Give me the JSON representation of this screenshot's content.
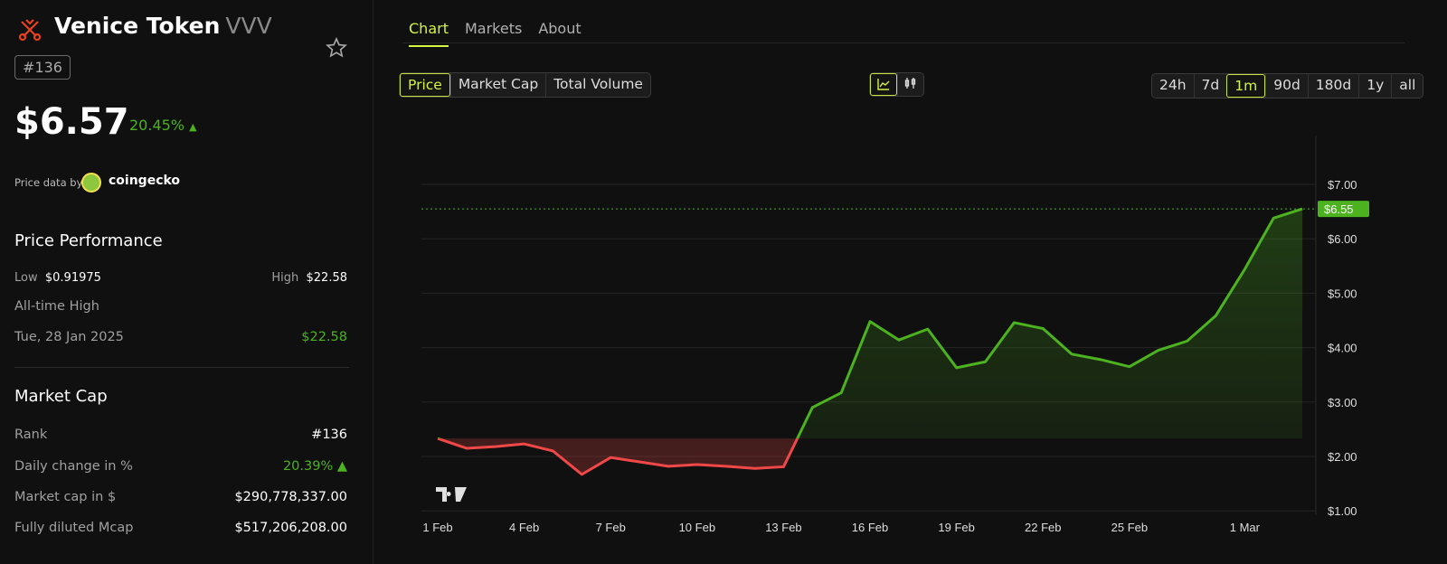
{
  "token": {
    "name": "Venice Token",
    "symbol": "VVV",
    "rank_badge": "#136",
    "price": "$6.57",
    "change_24h": "20.45%",
    "change_arrow": "▲",
    "price_data_by": "Price data by",
    "provider": "coingecko"
  },
  "performance": {
    "title": "Price Performance",
    "low_label": "Low",
    "low_value": "$0.91975",
    "high_label": "High",
    "high_value": "$22.58",
    "ath_label": "All-time High",
    "ath_date": "Tue, 28 Jan 2025",
    "ath_value": "$22.58"
  },
  "market_cap": {
    "title": "Market Cap",
    "rows": [
      {
        "label": "Rank",
        "value": "#136"
      },
      {
        "label": "Daily change in %",
        "value": "20.39% ▲"
      },
      {
        "label": "Market cap in $",
        "value": "$290,778,337.00"
      },
      {
        "label": "Fully diluted Mcap",
        "value": "$517,206,208.00"
      }
    ]
  },
  "tabs": [
    "Chart",
    "Markets",
    "About"
  ],
  "metric_buttons": [
    "Price",
    "Market Cap",
    "Total Volume"
  ],
  "ranges": [
    "24h",
    "7d",
    "1m",
    "90d",
    "180d",
    "1y",
    "all"
  ],
  "active_range": "1m",
  "colors": {
    "up": "#4cb21f",
    "down": "#f04848",
    "accent": "#d4f442",
    "bg": "#101010"
  },
  "chart_data": {
    "type": "area",
    "x": [
      "1 Feb",
      "2 Feb",
      "3 Feb",
      "4 Feb",
      "5 Feb",
      "6 Feb",
      "7 Feb",
      "8 Feb",
      "9 Feb",
      "10 Feb",
      "11 Feb",
      "12 Feb",
      "13 Feb",
      "14 Feb",
      "15 Feb",
      "16 Feb",
      "17 Feb",
      "18 Feb",
      "19 Feb",
      "20 Feb",
      "21 Feb",
      "22 Feb",
      "23 Feb",
      "24 Feb",
      "25 Feb",
      "26 Feb",
      "27 Feb",
      "28 Feb",
      "1 Mar",
      "2 Mar",
      "3 Mar"
    ],
    "values": [
      2.33,
      2.15,
      2.18,
      2.23,
      2.1,
      1.67,
      1.98,
      1.9,
      1.82,
      1.85,
      1.82,
      1.78,
      1.81,
      2.9,
      3.17,
      4.48,
      4.14,
      4.34,
      3.63,
      3.74,
      4.46,
      4.35,
      3.88,
      3.78,
      3.65,
      3.95,
      4.12,
      4.59,
      5.44,
      6.38,
      6.55
    ],
    "baseline": 2.33,
    "x_ticks": [
      "1 Feb",
      "4 Feb",
      "7 Feb",
      "10 Feb",
      "13 Feb",
      "16 Feb",
      "19 Feb",
      "22 Feb",
      "25 Feb",
      "1 Mar"
    ],
    "y_ticks": [
      "$7.00",
      "$6.00",
      "$5.00",
      "$4.00",
      "$3.00",
      "$2.00",
      "$1.00"
    ],
    "y_tick_values": [
      7,
      6,
      5,
      4,
      3,
      2,
      1
    ],
    "current_label": "$6.55",
    "ylim": [
      1,
      7.5
    ],
    "grid": true
  }
}
